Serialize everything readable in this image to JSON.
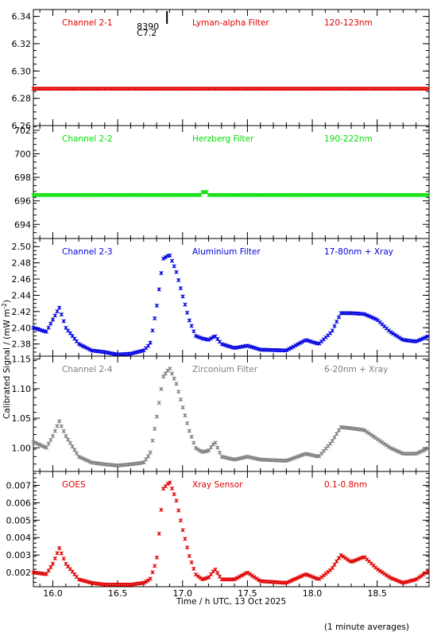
{
  "figure": {
    "xlabel": "Time / h UTC, 13 Oct 2025",
    "ylabel": "Calibrated Signal / (mW m",
    "ylabel_sup": "-2",
    "ylabel_close": ")",
    "footnote": "(1 minute averages)",
    "flare_marker": {
      "time": 16.88,
      "number": "8390",
      "class": "C7.2"
    },
    "xlim": [
      15.85,
      18.9
    ],
    "xticks": [
      "16.0",
      "16.5",
      "17.0",
      "17.5",
      "18.0",
      "18.5"
    ]
  },
  "chart_data": [
    {
      "type": "scatter",
      "name": "Channel 2-1",
      "filter": "Lyman-alpha Filter",
      "band": "120-123nm",
      "color": "#e00000",
      "ylim": [
        6.26,
        6.345
      ],
      "yticks": [
        "6.26",
        "6.28",
        "6.30",
        "6.32",
        "6.34"
      ],
      "x": [
        15.85,
        18.9
      ],
      "y": [
        6.287,
        6.287
      ],
      "bumps": []
    },
    {
      "type": "scatter",
      "name": "Channel 2-2",
      "filter": "Herzberg Filter",
      "band": "190-222nm",
      "color": "#00e000",
      "ylim": [
        692.8,
        702.4
      ],
      "yticks": [
        "694",
        "696",
        "698",
        "700",
        "702"
      ],
      "x": [
        15.85,
        18.9
      ],
      "y": [
        696.5,
        696.5
      ],
      "bumps": [
        [
          17.17,
          696.75
        ]
      ]
    },
    {
      "type": "scatter",
      "name": "Channel 2-3",
      "filter": "Aluminium Filter",
      "band": "17-80nm + Xray",
      "color": "#0000e0",
      "ylim": [
        2.365,
        2.51
      ],
      "yticks": [
        "2.38",
        "2.40",
        "2.42",
        "2.44",
        "2.46",
        "2.48",
        "2.50"
      ],
      "x": [
        15.85,
        15.95,
        16.0,
        16.05,
        16.1,
        16.2,
        16.3,
        16.4,
        16.5,
        16.6,
        16.7,
        16.75,
        16.8,
        16.85,
        16.9,
        16.95,
        17.0,
        17.05,
        17.1,
        17.15,
        17.2,
        17.25,
        17.3,
        17.4,
        17.5,
        17.6,
        17.8,
        17.95,
        18.05,
        18.15,
        18.22,
        18.3,
        18.4,
        18.5,
        18.6,
        18.7,
        18.8,
        18.9
      ],
      "y": [
        2.4,
        2.395,
        2.41,
        2.425,
        2.4,
        2.38,
        2.372,
        2.37,
        2.367,
        2.368,
        2.372,
        2.38,
        2.425,
        2.485,
        2.49,
        2.47,
        2.44,
        2.41,
        2.39,
        2.387,
        2.385,
        2.39,
        2.38,
        2.375,
        2.378,
        2.373,
        2.372,
        2.385,
        2.38,
        2.395,
        2.418,
        2.418,
        2.417,
        2.41,
        2.395,
        2.385,
        2.383,
        2.39
      ],
      "bumps": []
    },
    {
      "type": "scatter",
      "name": "Channel 2-4",
      "filter": "Zirconium Filter",
      "band": "6-20nm + Xray",
      "color": "#7f7f7f",
      "ylim": [
        0.96,
        1.155
      ],
      "yticks": [
        "1.00",
        "1.05",
        "1.10",
        "1.15"
      ],
      "x": [
        15.85,
        15.95,
        16.0,
        16.05,
        16.1,
        16.2,
        16.3,
        16.4,
        16.5,
        16.6,
        16.7,
        16.75,
        16.8,
        16.85,
        16.9,
        16.95,
        17.0,
        17.05,
        17.1,
        17.15,
        17.2,
        17.25,
        17.3,
        17.4,
        17.5,
        17.6,
        17.8,
        17.95,
        18.05,
        18.15,
        18.22,
        18.3,
        18.4,
        18.5,
        18.6,
        18.7,
        18.8,
        18.9
      ],
      "y": [
        1.01,
        1.0,
        1.02,
        1.045,
        1.02,
        0.985,
        0.975,
        0.972,
        0.97,
        0.972,
        0.975,
        0.99,
        1.05,
        1.12,
        1.135,
        1.11,
        1.07,
        1.03,
        1.0,
        0.993,
        0.995,
        1.01,
        0.985,
        0.98,
        0.985,
        0.98,
        0.978,
        0.99,
        0.985,
        1.01,
        1.035,
        1.033,
        1.03,
        1.015,
        1.0,
        0.99,
        0.99,
        1.0
      ],
      "bumps": []
    },
    {
      "type": "scatter",
      "name": "GOES",
      "filter": "Xray Sensor",
      "band": "0.1-0.8nm",
      "color": "#e00000",
      "ylim": [
        0.00118,
        0.0078
      ],
      "yticks": [
        "0.002",
        "0.003",
        "0.004",
        "0.005",
        "0.006",
        "0.007"
      ],
      "x": [
        15.85,
        15.95,
        16.0,
        16.05,
        16.1,
        16.2,
        16.3,
        16.4,
        16.5,
        16.6,
        16.7,
        16.75,
        16.8,
        16.85,
        16.9,
        16.95,
        17.0,
        17.05,
        17.1,
        17.15,
        17.2,
        17.25,
        17.3,
        17.4,
        17.5,
        17.6,
        17.8,
        17.95,
        18.05,
        18.15,
        18.22,
        18.3,
        18.4,
        18.5,
        18.6,
        18.7,
        18.8,
        18.9
      ],
      "y": [
        0.002,
        0.0019,
        0.0025,
        0.0034,
        0.0025,
        0.0016,
        0.0014,
        0.0013,
        0.0013,
        0.0013,
        0.0014,
        0.0016,
        0.0027,
        0.0068,
        0.0072,
        0.0062,
        0.0045,
        0.003,
        0.0019,
        0.0016,
        0.0017,
        0.0022,
        0.0016,
        0.0016,
        0.002,
        0.0015,
        0.0014,
        0.0019,
        0.0016,
        0.0022,
        0.003,
        0.0026,
        0.0029,
        0.0022,
        0.0017,
        0.0014,
        0.0016,
        0.0021
      ],
      "bumps": []
    }
  ]
}
